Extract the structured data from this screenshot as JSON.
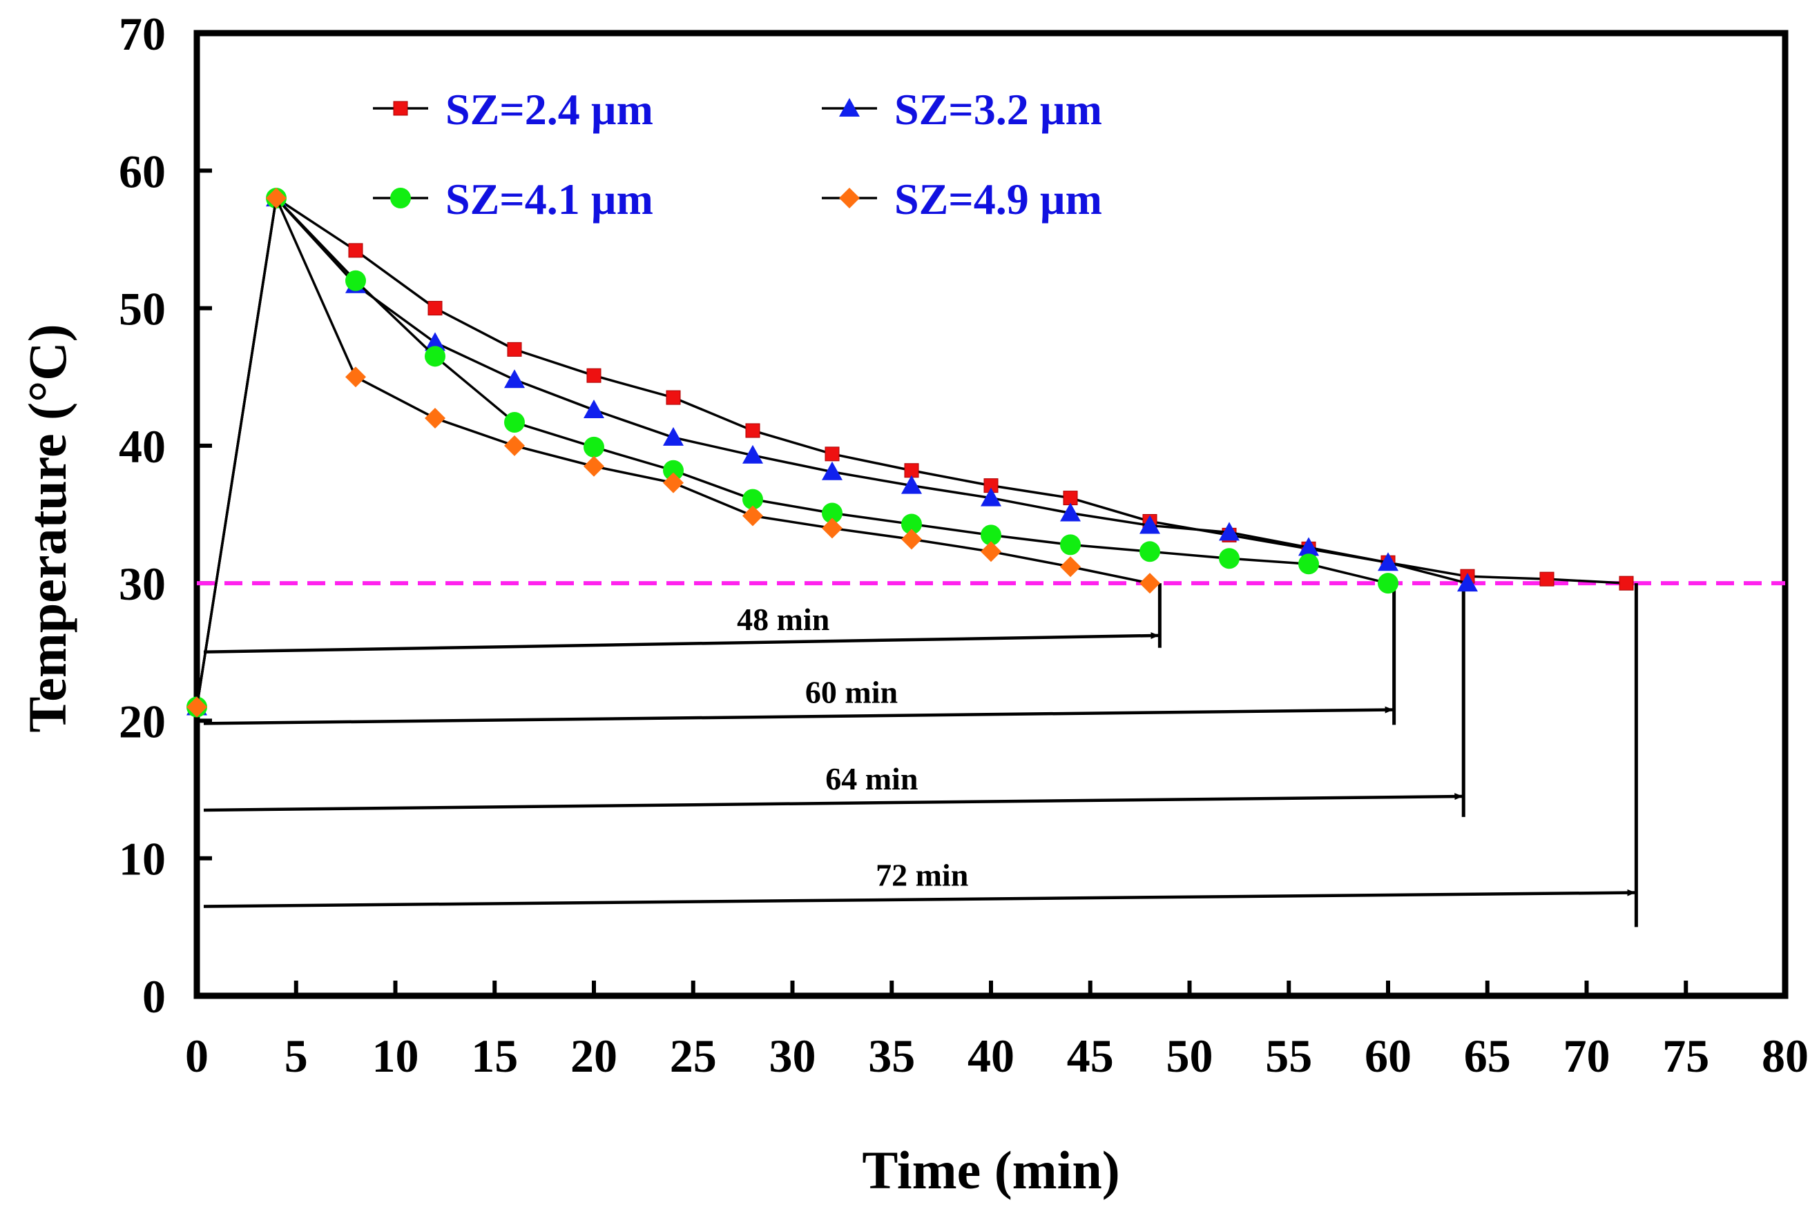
{
  "chart_data": {
    "type": "line",
    "xlabel": "Time (min)",
    "ylabel": "Temperature (°C)",
    "xlim": [
      0,
      80
    ],
    "ylim": [
      0,
      70
    ],
    "x_ticks": [
      0,
      5,
      10,
      15,
      20,
      25,
      30,
      35,
      40,
      45,
      50,
      55,
      60,
      65,
      70,
      75,
      80
    ],
    "y_ticks": [
      0,
      10,
      20,
      30,
      40,
      50,
      60,
      70
    ],
    "grid": false,
    "legend_position": "top",
    "series": [
      {
        "name": "SZ=2.4 µm",
        "marker": "square",
        "color": "#ee1111",
        "x": [
          0,
          4,
          8,
          12,
          16,
          20,
          24,
          28,
          32,
          36,
          40,
          44,
          48,
          52,
          56,
          60,
          64,
          68,
          72
        ],
        "y": [
          21,
          58,
          54.2,
          50,
          47,
          45.1,
          43.5,
          41.1,
          39.4,
          38.2,
          37.1,
          36.2,
          34.5,
          33.5,
          32.5,
          31.5,
          30.5,
          30.3,
          30
        ]
      },
      {
        "name": "SZ=3.2 µm",
        "marker": "triangle",
        "color": "#1020ee",
        "x": [
          0,
          4,
          8,
          12,
          16,
          20,
          24,
          28,
          32,
          36,
          40,
          44,
          48,
          52,
          56,
          60,
          64
        ],
        "y": [
          21,
          58,
          51.7,
          47.5,
          44.8,
          42.6,
          40.6,
          39.3,
          38.1,
          37.1,
          36.2,
          35.1,
          34.2,
          33.7,
          32.6,
          31.5,
          30
        ]
      },
      {
        "name": "SZ=4.1 µm",
        "marker": "circle",
        "color": "#11ee11",
        "x": [
          0,
          4,
          8,
          12,
          16,
          20,
          24,
          28,
          32,
          36,
          40,
          44,
          48,
          52,
          56,
          60
        ],
        "y": [
          21,
          58,
          52,
          46.5,
          41.7,
          39.9,
          38.2,
          36.1,
          35.1,
          34.3,
          33.5,
          32.8,
          32.3,
          31.8,
          31.4,
          30
        ]
      },
      {
        "name": "SZ=4.9 µm",
        "marker": "diamond",
        "color": "#ff7010",
        "x": [
          0,
          4,
          8,
          12,
          16,
          20,
          24,
          28,
          32,
          36,
          40,
          44,
          48
        ],
        "y": [
          21,
          58,
          45,
          42,
          40,
          38.5,
          37.3,
          34.9,
          34,
          33.2,
          32.3,
          31.2,
          30
        ]
      }
    ],
    "threshold_line": {
      "y": 30,
      "color": "#ff22ee",
      "style": "dashed"
    },
    "annotations": [
      {
        "label": "48 min",
        "end_x": 48.5,
        "y_start": 25,
        "y_end": 26.2,
        "vline_bottom": 25.3
      },
      {
        "label": "60 min",
        "end_x": 60.3,
        "y_start": 19.8,
        "y_end": 20.8,
        "vline_bottom": 19.7
      },
      {
        "label": "64 min",
        "end_x": 63.8,
        "y_start": 13.5,
        "y_end": 14.5,
        "vline_bottom": 13
      },
      {
        "label": "72 min",
        "end_x": 72.5,
        "y_start": 6.5,
        "y_end": 7.5,
        "vline_bottom": 5
      }
    ]
  }
}
